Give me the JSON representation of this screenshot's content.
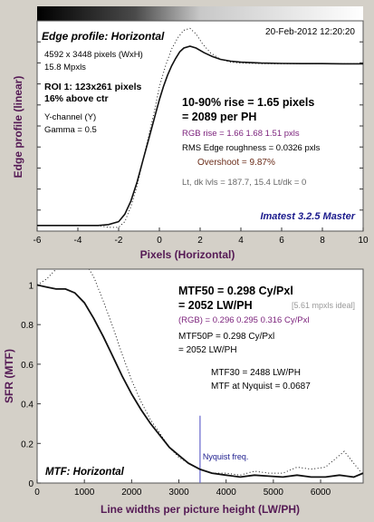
{
  "colors": {
    "background": "#d4d0c8",
    "plot_bg": "#ffffff",
    "axis_label": "#551a55",
    "tick_label": "#000000",
    "curve": "#111111",
    "purple_text": "#7a1f7a",
    "brown_text": "#6b2d1a",
    "gray_text": "#666666",
    "blue_text": "#1a1a8c",
    "nyquist_line": "#6666cc"
  },
  "chart_data": [
    {
      "type": "line",
      "title": "Edge profile: Horizontal",
      "xlabel": "Pixels (Horizontal)",
      "ylabel": "Edge profile (linear)",
      "xlim": [
        -6,
        10
      ],
      "xticks": [
        -6,
        -4,
        -2,
        0,
        2,
        4,
        6,
        8,
        10
      ],
      "header_right": "20-Feb-2012 12:20:20",
      "info_lines": [
        "4592 x 3448 pixels (WxH)",
        "15.8 Mpxls"
      ],
      "roi_lines": [
        "ROI 1:  123x261 pixels",
        "16% above ctr"
      ],
      "channel_lines": [
        "Y-channel  (Y)",
        "Gamma = 0.5"
      ],
      "rise_main": [
        "10-90% rise = 1.65 pixels",
        "= 2089 per PH"
      ],
      "rgb_rise": "RGB rise = 1.66  1.68  1.51 pxls",
      "roughness": "RMS Edge roughness = 0.0326 pxls",
      "overshoot": "Overshoot = 9.87%",
      "levels": "Lt, dk lvls = 187.7, 15.4   Lt/dk = 0",
      "watermark": "Imatest 3.2.5 Master",
      "series": [
        {
          "style": "solid",
          "x": [
            -6,
            -5,
            -4,
            -3,
            -2.5,
            -2,
            -1.7,
            -1.4,
            -1.1,
            -0.8,
            -0.5,
            -0.2,
            0,
            0.2,
            0.4,
            0.6,
            0.8,
            1.0,
            1.2,
            1.5,
            1.8,
            2.2,
            2.6,
            3,
            3.5,
            4,
            5,
            6,
            7,
            8,
            9,
            10
          ],
          "y": [
            0.03,
            0.03,
            0.03,
            0.03,
            0.035,
            0.05,
            0.09,
            0.16,
            0.26,
            0.38,
            0.5,
            0.62,
            0.7,
            0.77,
            0.83,
            0.88,
            0.92,
            0.955,
            0.975,
            0.985,
            0.975,
            0.95,
            0.93,
            0.915,
            0.905,
            0.9,
            0.895,
            0.893,
            0.892,
            0.892,
            0.891,
            0.891
          ]
        },
        {
          "style": "dotted",
          "x": [
            -6,
            -3,
            -2.5,
            -2,
            -1.7,
            -1.4,
            -1.1,
            -0.8,
            -0.5,
            -0.2,
            0,
            0.3,
            0.6,
            0.9,
            1.2,
            1.5,
            1.8,
            2.1,
            2.5,
            3,
            3.5,
            4,
            5,
            6,
            8,
            10
          ],
          "y": [
            0.03,
            0.03,
            0.02,
            0.02,
            0.05,
            0.13,
            0.24,
            0.38,
            0.52,
            0.66,
            0.77,
            0.88,
            0.97,
            1.03,
            1.07,
            1.08,
            1.05,
            1.0,
            0.95,
            0.915,
            0.9,
            0.895,
            0.892,
            0.891,
            0.891,
            0.891
          ]
        }
      ]
    },
    {
      "type": "line",
      "title": "MTF: Horizontal",
      "xlabel": "Line widths per picture height (LW/PH)",
      "ylabel": "SFR (MTF)",
      "xlim": [
        0,
        6900
      ],
      "ylim": [
        0,
        1.08
      ],
      "xticks": [
        0,
        1000,
        2000,
        3000,
        4000,
        5000,
        6000
      ],
      "yticks": [
        0,
        0.2,
        0.4,
        0.6,
        0.8,
        1
      ],
      "mtf50_main": [
        "MTF50 = 0.298 Cy/Pxl",
        "= 2052 LW/PH"
      ],
      "ideal": "[5.61 mpxls ideal]",
      "rgb_mtf": "(RGB) = 0.296  0.295  0.316 Cy/Pxl",
      "mtf50p": [
        "MTF50P = 0.298 Cy/Pxl",
        "= 2052 LW/PH"
      ],
      "mtf30": "MTF30 = 2488 LW/PH",
      "mtf_nyquist": "MTF at Nyquist = 0.0687",
      "nyquist_label": "Nyquist freq.",
      "nyquist_x": 3448,
      "series": [
        {
          "style": "solid",
          "x": [
            0,
            200,
            400,
            600,
            800,
            1000,
            1200,
            1400,
            1600,
            1800,
            2000,
            2200,
            2400,
            2600,
            2800,
            3000,
            3200,
            3448,
            3700,
            4000,
            4300,
            4600,
            4900,
            5200,
            5500,
            5800,
            6100,
            6400,
            6700,
            6900
          ],
          "y": [
            1.0,
            0.99,
            0.98,
            0.98,
            0.96,
            0.91,
            0.83,
            0.74,
            0.64,
            0.54,
            0.45,
            0.37,
            0.3,
            0.24,
            0.18,
            0.14,
            0.1,
            0.069,
            0.05,
            0.04,
            0.03,
            0.04,
            0.035,
            0.03,
            0.04,
            0.03,
            0.03,
            0.04,
            0.03,
            0.05
          ]
        },
        {
          "style": "dotted",
          "x": [
            0,
            200,
            400,
            600,
            800,
            1000,
            1200,
            1400,
            1600,
            1800,
            2000,
            2200,
            2400,
            2600,
            2800,
            3000,
            3200,
            3448,
            3700,
            4000,
            4300,
            4600,
            4900,
            5200,
            5500,
            5800,
            6100,
            6300,
            6500,
            6700,
            6900
          ],
          "y": [
            1.0,
            1.03,
            1.08,
            1.12,
            1.14,
            1.12,
            1.04,
            0.92,
            0.79,
            0.65,
            0.52,
            0.41,
            0.32,
            0.25,
            0.18,
            0.13,
            0.1,
            0.069,
            0.05,
            0.05,
            0.04,
            0.06,
            0.05,
            0.05,
            0.08,
            0.07,
            0.08,
            0.12,
            0.16,
            0.1,
            0.04
          ]
        }
      ]
    }
  ]
}
